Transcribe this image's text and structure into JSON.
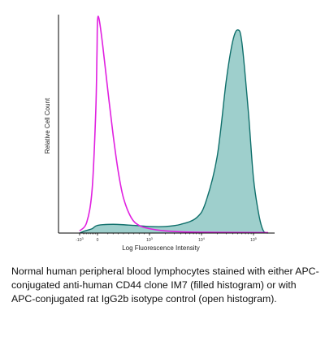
{
  "chart_data": {
    "type": "area",
    "title": "",
    "xlabel": "Log Fluorescence Intensity",
    "ylabel": "Relative Cell Count",
    "xscale": "biexponential",
    "x_tick_labels": [
      {
        "base": "-10",
        "exp": "3",
        "value": -1000
      },
      {
        "base": "0",
        "exp": "",
        "value": 0
      },
      {
        "base": "10",
        "exp": "3",
        "value": 1000
      },
      {
        "base": "10",
        "exp": "4",
        "value": 10000
      },
      {
        "base": "10",
        "exp": "5",
        "value": 100000
      }
    ],
    "grid": false,
    "series": [
      {
        "name": "Isotype control (open histogram)",
        "fill": "none",
        "color": "#e020e0",
        "points": [
          [
            -1000,
            0.01
          ],
          [
            -600,
            0.05
          ],
          [
            -300,
            0.2
          ],
          [
            -100,
            0.55
          ],
          [
            -30,
            0.82
          ],
          [
            0,
            0.97
          ],
          [
            30,
            0.98
          ],
          [
            100,
            0.86
          ],
          [
            200,
            0.65
          ],
          [
            300,
            0.45
          ],
          [
            400,
            0.28
          ],
          [
            500,
            0.16
          ],
          [
            650,
            0.07
          ],
          [
            800,
            0.035
          ],
          [
            1000,
            0.02
          ],
          [
            2000,
            0.01
          ],
          [
            5000,
            0.005
          ],
          [
            20000,
            0.003
          ],
          [
            200000,
            0.002
          ]
        ]
      },
      {
        "name": "Anti-human CD44 clone IM7 (filled histogram)",
        "fill": "#4fa7a3",
        "color": "#0f6f6b",
        "points": [
          [
            -1000,
            0.0
          ],
          [
            -700,
            0.01
          ],
          [
            -300,
            0.02
          ],
          [
            0,
            0.035
          ],
          [
            300,
            0.04
          ],
          [
            700,
            0.035
          ],
          [
            1000,
            0.03
          ],
          [
            2000,
            0.03
          ],
          [
            4000,
            0.04
          ],
          [
            8000,
            0.07
          ],
          [
            12000,
            0.14
          ],
          [
            20000,
            0.35
          ],
          [
            30000,
            0.7
          ],
          [
            40000,
            0.88
          ],
          [
            50000,
            0.93
          ],
          [
            60000,
            0.87
          ],
          [
            80000,
            0.55
          ],
          [
            100000,
            0.25
          ],
          [
            130000,
            0.08
          ],
          [
            160000,
            0.01
          ],
          [
            200000,
            0.0
          ]
        ]
      }
    ]
  },
  "caption": "Normal human peripheral blood lymphocytes stained with either APC-conjugated anti-human CD44 clone IM7 (filled histogram) or with APC-conjugated rat IgG2b isotype control (open histogram)."
}
